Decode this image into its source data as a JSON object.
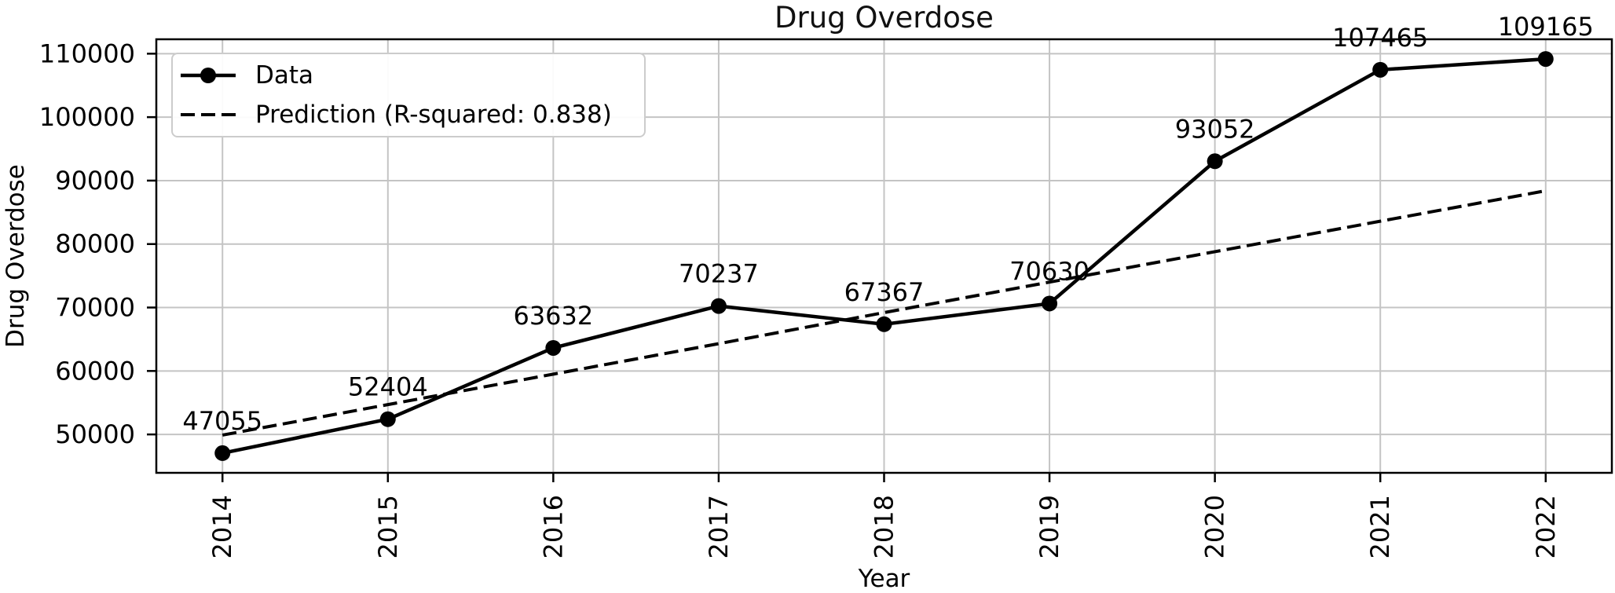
{
  "chart_data": {
    "type": "line",
    "title": "Drug Overdose",
    "xlabel": "Year",
    "ylabel": "Drug Overdose",
    "x": [
      2014,
      2015,
      2016,
      2017,
      2018,
      2019,
      2020,
      2021,
      2022
    ],
    "x_tick_labels": [
      "2014",
      "2015",
      "2016",
      "2017",
      "2018",
      "2019",
      "2020",
      "2021",
      "2022"
    ],
    "x_tick_rotation": 90,
    "series": [
      {
        "name": "Data",
        "style": "solid",
        "marker": "circle",
        "color": "#000000",
        "values": [
          47055,
          52404,
          63632,
          70237,
          67367,
          70630,
          93052,
          107465,
          109165
        ]
      },
      {
        "name": "Prediction (R-squared: 0.838)",
        "style": "dashed",
        "marker": "none",
        "color": "#000000",
        "values": [
          49900,
          54700,
          59500,
          64300,
          69200,
          74000,
          78800,
          83600,
          88400
        ]
      }
    ],
    "point_labels": [
      "47055",
      "52404",
      "63632",
      "70237",
      "67367",
      "70630",
      "93052",
      "107465",
      "109165"
    ],
    "r_squared": 0.838,
    "yticks": [
      50000,
      60000,
      70000,
      80000,
      90000,
      100000,
      110000
    ],
    "ytick_labels": [
      "50000",
      "60000",
      "70000",
      "80000",
      "90000",
      "100000",
      "110000"
    ],
    "xlim": [
      2013.6,
      2022.4
    ],
    "ylim": [
      43950,
      112271
    ],
    "grid": true,
    "legend_position": "upper-left",
    "colors": {
      "line": "#000000",
      "grid": "#c4c4c4",
      "text": "#000000",
      "legend_border": "#cccccc",
      "background": "#ffffff"
    }
  }
}
